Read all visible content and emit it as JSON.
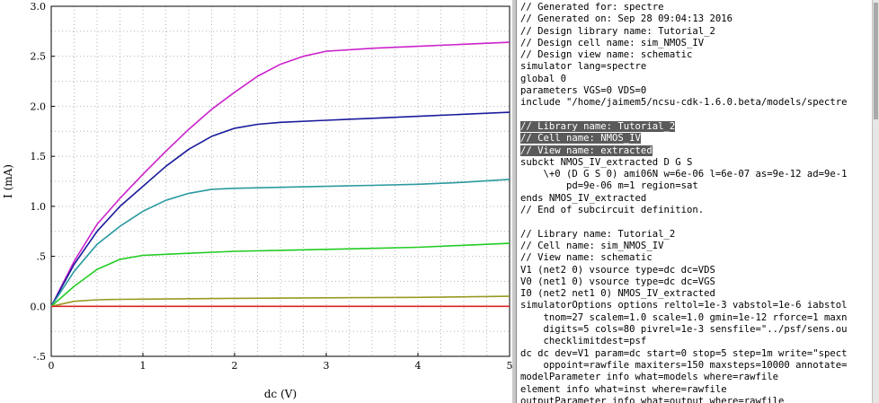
{
  "plot": {
    "xlabel": "dc (V)",
    "ylabel": "I (mA)"
  },
  "chart_data": {
    "type": "line",
    "xlabel": "dc (V)",
    "ylabel": "I (mA)",
    "xlim": [
      0,
      5
    ],
    "ylim": [
      -0.5,
      3.0
    ],
    "x_ticks": [
      "0",
      "1",
      "2",
      "3",
      "4",
      "5"
    ],
    "y_ticks": [
      "-.5",
      "0.0",
      ".5",
      "1.0",
      "1.5",
      "2.0",
      "2.5",
      "3.0"
    ],
    "grid": true,
    "series": [
      {
        "color": "#cc22cc",
        "x": [
          0,
          0.25,
          0.5,
          0.75,
          1,
          1.25,
          1.5,
          1.75,
          2,
          2.25,
          2.5,
          2.75,
          3,
          3.5,
          4,
          4.5,
          5
        ],
        "y": [
          0,
          0.45,
          0.82,
          1.08,
          1.32,
          1.55,
          1.77,
          1.97,
          2.14,
          2.3,
          2.42,
          2.5,
          2.55,
          2.58,
          2.6,
          2.62,
          2.64
        ]
      },
      {
        "color": "#1a1a9c",
        "x": [
          0,
          0.25,
          0.5,
          0.75,
          1,
          1.25,
          1.5,
          1.75,
          2,
          2.25,
          2.5,
          3,
          3.5,
          4,
          4.5,
          5
        ],
        "y": [
          0,
          0.42,
          0.75,
          1.0,
          1.2,
          1.4,
          1.57,
          1.7,
          1.78,
          1.82,
          1.84,
          1.86,
          1.88,
          1.9,
          1.92,
          1.94
        ]
      },
      {
        "color": "#2a9aa0",
        "x": [
          0,
          0.25,
          0.5,
          0.75,
          1,
          1.25,
          1.5,
          1.75,
          2,
          2.5,
          3,
          3.5,
          4,
          4.5,
          5
        ],
        "y": [
          0,
          0.35,
          0.62,
          0.8,
          0.95,
          1.06,
          1.13,
          1.17,
          1.18,
          1.19,
          1.2,
          1.21,
          1.22,
          1.24,
          1.27
        ]
      },
      {
        "color": "#22cc22",
        "x": [
          0,
          0.25,
          0.5,
          0.75,
          1,
          1.25,
          1.5,
          2,
          2.5,
          3,
          3.5,
          4,
          4.5,
          5
        ],
        "y": [
          0,
          0.2,
          0.37,
          0.47,
          0.51,
          0.52,
          0.53,
          0.55,
          0.56,
          0.57,
          0.58,
          0.59,
          0.61,
          0.63
        ]
      },
      {
        "color": "#999922",
        "x": [
          0,
          0.25,
          0.5,
          0.75,
          1,
          2,
          3,
          4,
          5
        ],
        "y": [
          0,
          0.05,
          0.065,
          0.07,
          0.072,
          0.08,
          0.085,
          0.09,
          0.1
        ]
      },
      {
        "color": "#dd2222",
        "x": [
          0,
          5
        ],
        "y": [
          0,
          0
        ]
      }
    ]
  },
  "netlist": {
    "lines": [
      "// Generated for: spectre",
      "// Generated on: Sep 28 09:04:13 2016",
      "// Design library name: Tutorial_2",
      "// Design cell name: sim_NMOS_IV",
      "// Design view name: schematic",
      "simulator lang=spectre",
      "global 0",
      "parameters VGS=0 VDS=0",
      "include \"/home/jaimem5/ncsu-cdk-1.6.0.beta/models/spectre",
      "",
      "// Library name: Tutorial_2",
      "// Cell name: NMOS_IV",
      "// View name: extracted",
      "subckt NMOS_IV_extracted D G S",
      "    \\+0 (D G S 0) ami06N w=6e-06 l=6e-07 as=9e-12 ad=9e-1",
      "        pd=9e-06 m=1 region=sat",
      "ends NMOS_IV_extracted",
      "// End of subcircuit definition.",
      "",
      "// Library name: Tutorial_2",
      "// Cell name: sim_NMOS_IV",
      "// View name: schematic",
      "V1 (net2 0) vsource type=dc dc=VDS",
      "V0 (net1 0) vsource type=dc dc=VGS",
      "I0 (net2 net1 0) NMOS_IV_extracted",
      "simulatorOptions options reltol=1e-3 vabstol=1e-6 iabstol",
      "    tnom=27 scalem=1.0 scale=1.0 gmin=1e-12 rforce=1 maxn",
      "    digits=5 cols=80 pivrel=1e-3 sensfile=\"../psf/sens.ou",
      "    checklimitdest=psf",
      "dc dc dev=V1 param=dc start=0 stop=5 step=1m write=\"spect",
      "    oppoint=rawfile maxiters=150 maxsteps=10000 annotate=",
      "modelParameter info what=models where=rawfile",
      "element info what=inst where=rawfile",
      "outputParameter info what=output where=rawfile"
    ],
    "highlighted": [
      10,
      11,
      12
    ]
  }
}
